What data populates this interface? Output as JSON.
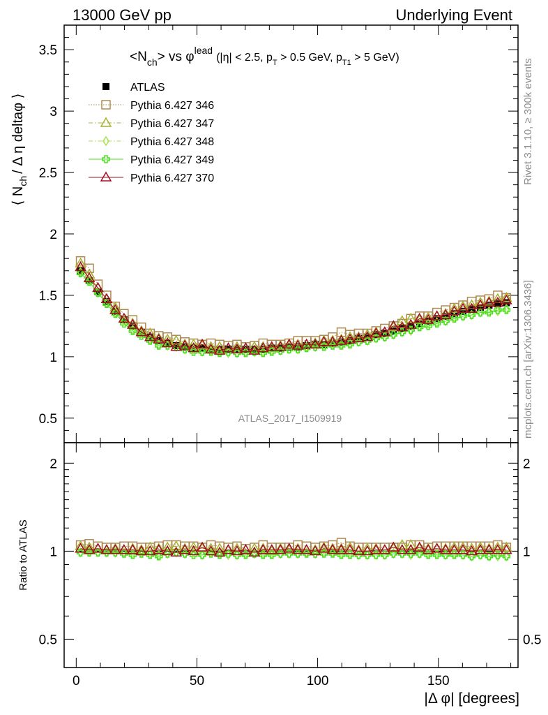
{
  "header": {
    "left": "13000 GeV pp",
    "right": "Underlying Event"
  },
  "plot_title": {
    "main_a": "<N",
    "main_sub": "ch",
    "main_b": "> vs φ",
    "main_sup": "lead",
    "cut_a": "(|η| < 2.5, p",
    "cut_sub1": "T",
    "cut_b": " > 0.5 GeV, p",
    "cut_sub2": "T1",
    "cut_c": " > 5 GeV)"
  },
  "y_axis_label": {
    "a": "⟨ N",
    "sub": "ch",
    "b": "/ Δ η deltaφ ⟩"
  },
  "ratio_y_label": "Ratio to ATLAS",
  "x_axis_label": "|Δ φ| [degrees]",
  "analysis_tag": "ATLAS_2017_I1509919",
  "side_text": {
    "rivet": "Rivet 3.1.10, ≥ 300k events",
    "mcplots": "mcplots.cern.ch [arXiv:1306.3436]"
  },
  "colors": {
    "atlas": "#000000",
    "p346": "#b08a52",
    "p347": "#a8b030",
    "p348": "#a8e050",
    "p349": "#48e020",
    "p370": "#a01020",
    "axis": "#000000",
    "side_text": "#8c8c8c"
  },
  "chart_data": [
    {
      "type": "scatter",
      "panel": "main",
      "xlim": [
        -5,
        183
      ],
      "ylim": [
        0.3,
        3.7
      ],
      "y_ticks": [
        "0.5",
        "1",
        "1.5",
        "2",
        "2.5",
        "3",
        "3.5"
      ],
      "x": [
        1.8,
        5.4,
        9.0,
        12.6,
        16.2,
        19.8,
        23.4,
        27.0,
        30.6,
        34.2,
        37.8,
        41.4,
        45.0,
        48.6,
        52.2,
        55.8,
        59.4,
        63.0,
        66.6,
        70.2,
        73.8,
        77.4,
        81.0,
        84.6,
        88.2,
        91.8,
        95.4,
        99.0,
        102.6,
        106.2,
        109.8,
        113.4,
        117.0,
        120.6,
        124.2,
        127.8,
        131.4,
        135.0,
        138.6,
        142.2,
        145.8,
        149.4,
        153.0,
        156.6,
        160.2,
        163.8,
        167.4,
        171.0,
        174.6,
        178.2
      ],
      "series": [
        {
          "name": "ATLAS",
          "marker": "filled-square",
          "values": [
            1.7,
            1.62,
            1.53,
            1.45,
            1.37,
            1.3,
            1.25,
            1.2,
            1.16,
            1.13,
            1.11,
            1.09,
            1.08,
            1.07,
            1.07,
            1.06,
            1.06,
            1.06,
            1.06,
            1.06,
            1.06,
            1.06,
            1.07,
            1.07,
            1.08,
            1.08,
            1.09,
            1.1,
            1.1,
            1.11,
            1.12,
            1.13,
            1.15,
            1.16,
            1.18,
            1.19,
            1.21,
            1.23,
            1.25,
            1.27,
            1.29,
            1.31,
            1.33,
            1.35,
            1.37,
            1.39,
            1.4,
            1.42,
            1.43,
            1.44
          ]
        },
        {
          "name": "Pythia 6.427 346",
          "marker": "open-square",
          "line": "dotted",
          "values": [
            1.78,
            1.72,
            1.59,
            1.5,
            1.41,
            1.35,
            1.3,
            1.24,
            1.19,
            1.17,
            1.16,
            1.14,
            1.12,
            1.11,
            1.1,
            1.11,
            1.1,
            1.09,
            1.1,
            1.08,
            1.09,
            1.11,
            1.1,
            1.1,
            1.11,
            1.13,
            1.13,
            1.13,
            1.14,
            1.16,
            1.2,
            1.18,
            1.19,
            1.19,
            1.21,
            1.23,
            1.25,
            1.27,
            1.31,
            1.33,
            1.33,
            1.36,
            1.38,
            1.4,
            1.42,
            1.45,
            1.46,
            1.47,
            1.5,
            1.48
          ]
        },
        {
          "name": "Pythia 6.427 347",
          "marker": "open-triangle",
          "line": "dashdot",
          "values": [
            1.76,
            1.67,
            1.56,
            1.47,
            1.4,
            1.31,
            1.27,
            1.21,
            1.19,
            1.15,
            1.14,
            1.13,
            1.1,
            1.1,
            1.09,
            1.08,
            1.08,
            1.07,
            1.08,
            1.07,
            1.08,
            1.08,
            1.07,
            1.09,
            1.09,
            1.1,
            1.1,
            1.11,
            1.13,
            1.13,
            1.14,
            1.16,
            1.16,
            1.18,
            1.2,
            1.2,
            1.24,
            1.29,
            1.31,
            1.3,
            1.32,
            1.33,
            1.35,
            1.39,
            1.41,
            1.42,
            1.44,
            1.45,
            1.47,
            1.48
          ]
        },
        {
          "name": "Pythia 6.427 348",
          "marker": "open-diamond",
          "line": "dashdot",
          "values": [
            1.69,
            1.62,
            1.52,
            1.44,
            1.36,
            1.29,
            1.22,
            1.19,
            1.14,
            1.1,
            1.09,
            1.08,
            1.06,
            1.06,
            1.04,
            1.05,
            1.04,
            1.03,
            1.03,
            1.04,
            1.04,
            1.04,
            1.05,
            1.05,
            1.06,
            1.06,
            1.08,
            1.08,
            1.09,
            1.1,
            1.1,
            1.11,
            1.12,
            1.13,
            1.15,
            1.16,
            1.18,
            1.2,
            1.21,
            1.25,
            1.27,
            1.28,
            1.29,
            1.32,
            1.33,
            1.34,
            1.36,
            1.37,
            1.37,
            1.39
          ]
        },
        {
          "name": "Pythia 6.427 349",
          "marker": "open-cross",
          "line": "solid",
          "values": [
            1.68,
            1.61,
            1.52,
            1.43,
            1.35,
            1.27,
            1.21,
            1.17,
            1.13,
            1.09,
            1.09,
            1.08,
            1.06,
            1.04,
            1.04,
            1.04,
            1.03,
            1.04,
            1.03,
            1.03,
            1.04,
            1.03,
            1.04,
            1.05,
            1.06,
            1.06,
            1.07,
            1.08,
            1.08,
            1.09,
            1.09,
            1.1,
            1.12,
            1.13,
            1.15,
            1.16,
            1.18,
            1.2,
            1.22,
            1.24,
            1.25,
            1.27,
            1.29,
            1.31,
            1.33,
            1.34,
            1.36,
            1.36,
            1.38,
            1.38
          ]
        },
        {
          "name": "Pythia 6.427 370",
          "marker": "open-triangle",
          "line": "solid",
          "values": [
            1.73,
            1.64,
            1.56,
            1.47,
            1.38,
            1.31,
            1.26,
            1.2,
            1.16,
            1.14,
            1.11,
            1.08,
            1.09,
            1.07,
            1.1,
            1.06,
            1.05,
            1.07,
            1.06,
            1.07,
            1.05,
            1.07,
            1.08,
            1.08,
            1.1,
            1.09,
            1.1,
            1.1,
            1.12,
            1.12,
            1.13,
            1.14,
            1.15,
            1.16,
            1.19,
            1.2,
            1.25,
            1.24,
            1.26,
            1.31,
            1.3,
            1.33,
            1.34,
            1.37,
            1.39,
            1.39,
            1.42,
            1.44,
            1.44,
            1.46
          ]
        }
      ]
    },
    {
      "type": "scatter",
      "panel": "ratio",
      "xlim": [
        -5,
        183
      ],
      "ylim": [
        0.4,
        2.35
      ],
      "y_scale": "log",
      "y_ticks": [
        "0.5",
        "1",
        "2"
      ],
      "x_ticks": [
        "0",
        "50",
        "100",
        "150"
      ],
      "xlabel": "|Δ φ| [degrees]",
      "ylabel": "Ratio to ATLAS",
      "reference_line": 1.0,
      "x": [
        1.8,
        5.4,
        9.0,
        12.6,
        16.2,
        19.8,
        23.4,
        27.0,
        30.6,
        34.2,
        37.8,
        41.4,
        45.0,
        48.6,
        52.2,
        55.8,
        59.4,
        63.0,
        66.6,
        70.2,
        73.8,
        77.4,
        81.0,
        84.6,
        88.2,
        91.8,
        95.4,
        99.0,
        102.6,
        106.2,
        109.8,
        113.4,
        117.0,
        120.6,
        124.2,
        127.8,
        131.4,
        135.0,
        138.6,
        142.2,
        145.8,
        149.4,
        153.0,
        156.6,
        160.2,
        163.8,
        167.4,
        171.0,
        174.6,
        178.2
      ],
      "series": [
        {
          "name": "Pythia 6.427 346",
          "values": [
            1.05,
            1.06,
            1.04,
            1.03,
            1.03,
            1.04,
            1.04,
            1.03,
            1.03,
            1.04,
            1.05,
            1.05,
            1.04,
            1.04,
            1.03,
            1.05,
            1.04,
            1.03,
            1.04,
            1.02,
            1.03,
            1.05,
            1.03,
            1.03,
            1.03,
            1.05,
            1.04,
            1.03,
            1.04,
            1.05,
            1.07,
            1.04,
            1.03,
            1.03,
            1.03,
            1.03,
            1.03,
            1.03,
            1.05,
            1.05,
            1.03,
            1.04,
            1.04,
            1.04,
            1.04,
            1.04,
            1.04,
            1.04,
            1.05,
            1.03
          ]
        },
        {
          "name": "Pythia 6.427 347",
          "values": [
            1.04,
            1.03,
            1.02,
            1.01,
            1.02,
            1.01,
            1.02,
            1.01,
            1.03,
            1.02,
            1.03,
            1.04,
            1.02,
            1.03,
            1.02,
            1.02,
            1.02,
            1.01,
            1.02,
            1.01,
            1.02,
            1.02,
            1.0,
            1.02,
            1.01,
            1.02,
            1.01,
            1.01,
            1.03,
            1.02,
            1.02,
            1.03,
            1.01,
            1.02,
            1.02,
            1.01,
            1.02,
            1.05,
            1.05,
            1.02,
            1.02,
            1.02,
            1.02,
            1.03,
            1.03,
            1.02,
            1.03,
            1.02,
            1.03,
            1.03
          ]
        },
        {
          "name": "Pythia 6.427 348",
          "values": [
            0.99,
            1.0,
            0.99,
            0.99,
            0.99,
            0.99,
            0.98,
            0.99,
            0.98,
            0.97,
            0.98,
            0.99,
            0.98,
            0.99,
            0.97,
            0.99,
            0.98,
            0.97,
            0.97,
            0.98,
            0.98,
            0.98,
            0.98,
            0.98,
            0.98,
            0.98,
            0.99,
            0.98,
            0.99,
            0.99,
            0.98,
            0.98,
            0.97,
            0.97,
            0.97,
            0.97,
            0.98,
            0.98,
            0.97,
            0.98,
            0.98,
            0.98,
            0.97,
            0.98,
            0.97,
            0.96,
            0.97,
            0.96,
            0.96,
            0.96
          ]
        },
        {
          "name": "Pythia 6.427 349",
          "values": [
            0.99,
            0.99,
            0.99,
            0.99,
            0.99,
            0.98,
            0.97,
            0.98,
            0.97,
            0.96,
            0.98,
            0.99,
            0.98,
            0.97,
            0.97,
            0.98,
            0.97,
            0.98,
            0.97,
            0.97,
            0.98,
            0.97,
            0.97,
            0.98,
            0.98,
            0.98,
            0.98,
            0.98,
            0.98,
            0.98,
            0.97,
            0.97,
            0.97,
            0.97,
            0.97,
            0.97,
            0.98,
            0.98,
            0.98,
            0.98,
            0.97,
            0.97,
            0.97,
            0.97,
            0.97,
            0.96,
            0.97,
            0.96,
            0.97,
            0.96
          ]
        },
        {
          "name": "Pythia 6.427 370",
          "values": [
            1.02,
            1.01,
            1.02,
            1.01,
            1.01,
            1.01,
            1.01,
            1.0,
            1.0,
            1.01,
            1.0,
            0.99,
            1.01,
            1.0,
            1.03,
            1.0,
            0.99,
            1.01,
            1.0,
            1.01,
            0.99,
            1.01,
            1.01,
            1.01,
            1.02,
            1.01,
            1.01,
            1.0,
            1.02,
            1.01,
            1.01,
            1.01,
            1.0,
            1.0,
            1.01,
            1.01,
            1.03,
            1.01,
            1.01,
            1.03,
            1.01,
            1.02,
            1.01,
            1.01,
            1.01,
            1.0,
            1.01,
            1.01,
            1.01,
            1.01
          ]
        }
      ]
    }
  ]
}
